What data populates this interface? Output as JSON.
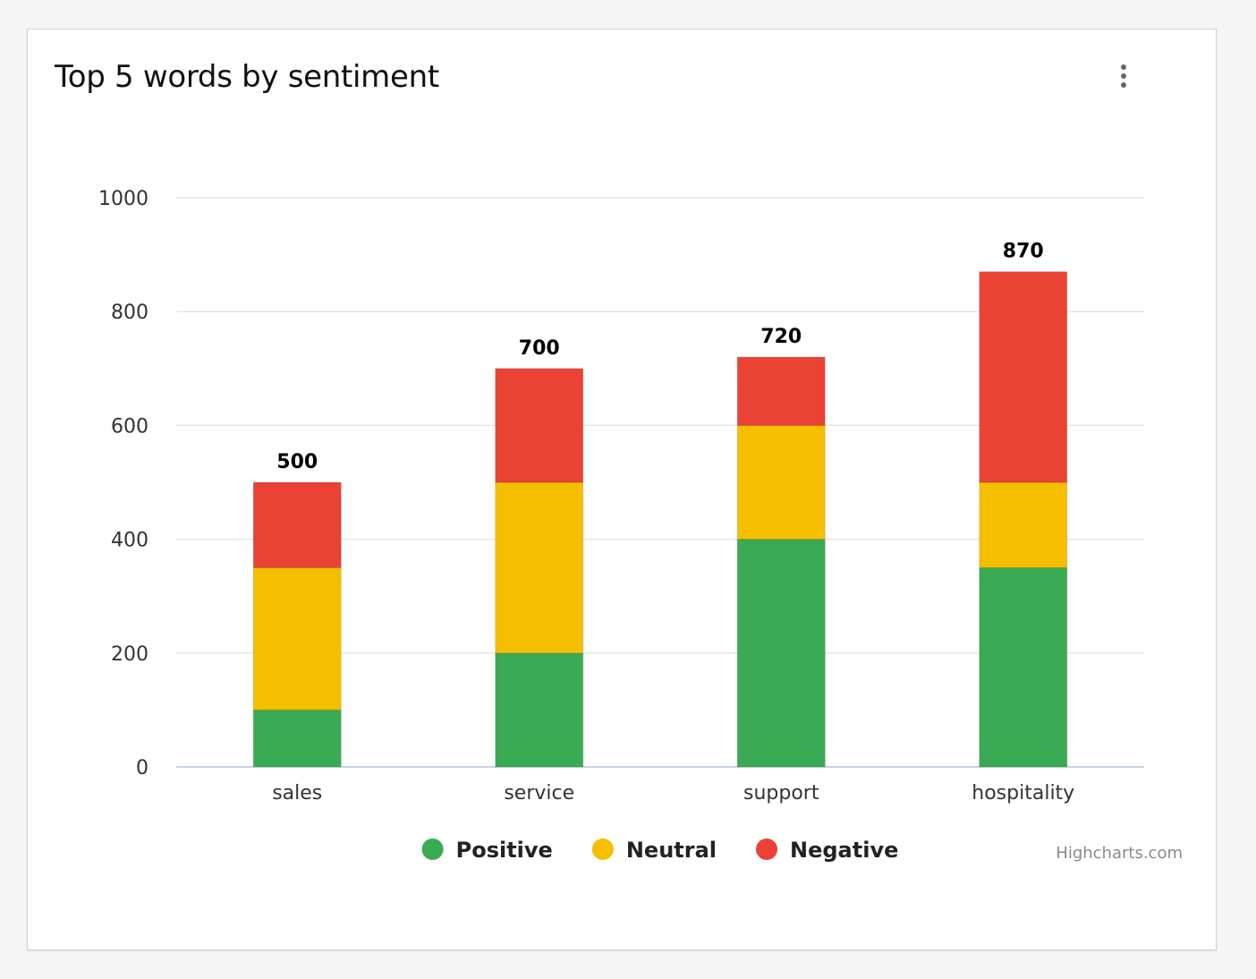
{
  "card": {
    "title": "Top 5 words by sentiment",
    "menu_icon": "vertical-dots-icon",
    "credits": "Highcharts.com"
  },
  "chart_data": {
    "type": "bar",
    "stacked": true,
    "title": "Top 5 words by sentiment",
    "categories": [
      "sales",
      "service",
      "support",
      "hospitality"
    ],
    "series": [
      {
        "name": "Positive",
        "color": "#3aaa55",
        "values": [
          100,
          200,
          400,
          350
        ]
      },
      {
        "name": "Neutral",
        "color": "#f5bf00",
        "values": [
          250,
          300,
          200,
          150
        ]
      },
      {
        "name": "Negative",
        "color": "#ea4335",
        "values": [
          150,
          200,
          120,
          370
        ]
      }
    ],
    "totals": [
      500,
      700,
      720,
      870
    ],
    "ylim": [
      0,
      1000
    ],
    "yticks": [
      0,
      200,
      400,
      600,
      800,
      1000
    ],
    "grid": true,
    "legend_position": "bottom-center",
    "xlabel": "",
    "ylabel": ""
  }
}
